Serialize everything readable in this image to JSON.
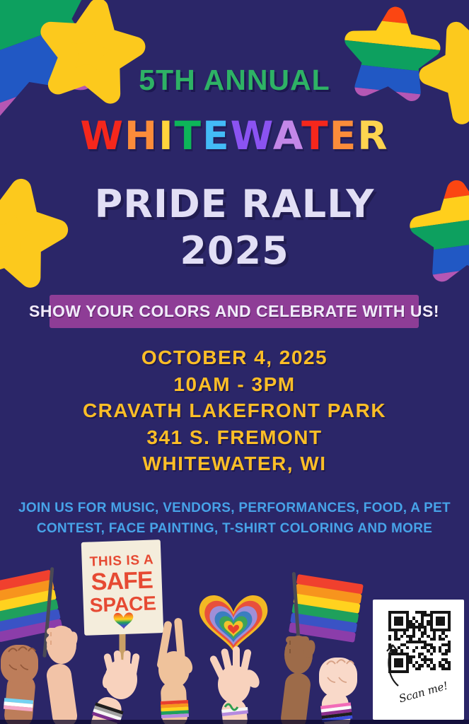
{
  "poster": {
    "eyebrow": "5TH ANNUAL",
    "city_letters": [
      {
        "ch": "W",
        "color": "#f5271c"
      },
      {
        "ch": "H",
        "color": "#fb8c3a"
      },
      {
        "ch": "I",
        "color": "#ffd43c"
      },
      {
        "ch": "T",
        "color": "#0db559"
      },
      {
        "ch": "E",
        "color": "#43bbf7"
      },
      {
        "ch": "W",
        "color": "#8b53f2"
      },
      {
        "ch": "A",
        "color": "#c387e8"
      },
      {
        "ch": "T",
        "color": "#f5271c"
      },
      {
        "ch": "E",
        "color": "#fb8c3a"
      },
      {
        "ch": "R",
        "color": "#fcd44f"
      }
    ],
    "title_line1": "PRIDE RALLY",
    "title_line2": "2025",
    "banner_text": "SHOW YOUR COLORS AND CELEBRATE WITH US!",
    "event_details": [
      "OCTOBER 4, 2025",
      "10AM - 3PM",
      "CRAVATH LAKEFRONT PARK",
      "341 S. FREMONT",
      "WHITEWATER, WI"
    ],
    "description_lines": [
      "JOIN US FOR MUSIC, VENDORS, PERFORMANCES, FOOD, A PET",
      "CONTEST, FACE PAINTING, T-SHIRT COLORING AND MORE"
    ],
    "sign": {
      "line1": "THIS IS A",
      "line2": "SAFE",
      "line3": "SPACE"
    },
    "qr_caption": "Scan me!",
    "colors": {
      "background": "#2b2668",
      "eyebrow_green": "#2eb265",
      "title_white": "#e2dff5",
      "banner_purple": "#8e3d96",
      "details_gold": "#fdbe27",
      "description_blue": "#47a3e8",
      "star_yellow": "#fcc91d",
      "star_rainbow": [
        "#fb4612",
        "#ffcf1c",
        "#0da05f",
        "#2158c4",
        "#b457b4"
      ],
      "flag_rainbow": [
        "#f0402e",
        "#f7941d",
        "#ffd21f",
        "#1fa05c",
        "#3a53c5",
        "#8b3daa"
      ],
      "sign_text_red": "#e64a33"
    }
  }
}
